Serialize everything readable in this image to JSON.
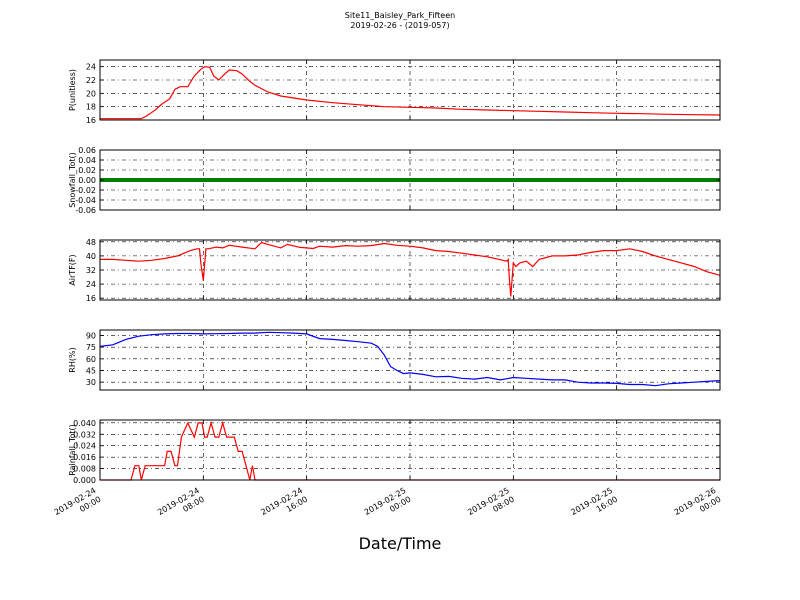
{
  "title": "Site11_Baisley_Park_Fifteen",
  "subtitle": "2019-02-26 - (2019-057)",
  "xlabel": "Date/Time",
  "x_ticks": [
    [
      "2019-02-24",
      "00:00"
    ],
    [
      "2019-02-24",
      "08:00"
    ],
    [
      "2019-02-24",
      "16:00"
    ],
    [
      "2019-02-25",
      "00:00"
    ],
    [
      "2019-02-25",
      "08:00"
    ],
    [
      "2019-02-25",
      "16:00"
    ],
    [
      "2019-02-26",
      "00:00"
    ]
  ],
  "chart_data": [
    {
      "type": "line",
      "ylabel": "P(unitless)",
      "color": "#ff0000",
      "x_range_hours": [
        0,
        48
      ],
      "ylim": [
        16,
        25
      ],
      "yticks": [
        16,
        18,
        20,
        22,
        24
      ],
      "tick_decimals": 0,
      "grid": true,
      "series": [
        {
          "x": [
            0,
            3.2,
            3.6,
            4.2,
            4.8,
            5.4,
            5.8,
            6.2,
            6.8,
            7.3,
            7.8,
            8.1,
            8.5,
            8.8,
            9.2,
            9.6,
            10.0,
            10.6,
            11.0,
            11.6,
            12.0,
            13.0,
            14.0,
            15.0,
            16.0,
            18.0,
            20.0,
            22.0,
            24.0,
            26.0,
            28.0,
            30.0,
            32.0,
            34.0,
            36.0,
            38.0,
            40.0,
            42.0,
            44.0,
            46.0,
            48.0
          ],
          "y": [
            16.2,
            16.2,
            16.6,
            17.4,
            18.4,
            19.2,
            20.6,
            21.0,
            21.0,
            22.6,
            23.6,
            24.0,
            23.9,
            22.6,
            22.0,
            22.8,
            23.5,
            23.4,
            22.9,
            21.8,
            21.2,
            20.2,
            19.6,
            19.3,
            19.0,
            18.6,
            18.3,
            18.0,
            17.9,
            17.8,
            17.6,
            17.5,
            17.4,
            17.3,
            17.2,
            17.1,
            17.0,
            16.95,
            16.85,
            16.8,
            16.75
          ]
        }
      ]
    },
    {
      "type": "line",
      "ylabel": "Snowfall_Tot()",
      "color": "#008000",
      "x_range_hours": [
        0,
        48
      ],
      "ylim": [
        -0.06,
        0.06
      ],
      "yticks": [
        -0.06,
        -0.04,
        -0.02,
        0.0,
        0.02,
        0.04,
        0.06
      ],
      "tick_decimals": 2,
      "grid": true,
      "series": [
        {
          "x": [
            0,
            48
          ],
          "y": [
            0,
            0
          ]
        }
      ]
    },
    {
      "type": "line",
      "ylabel": "AirTF(F)",
      "color": "#ff0000",
      "x_range_hours": [
        0,
        48
      ],
      "ylim": [
        15,
        49
      ],
      "yticks": [
        16,
        24,
        32,
        40,
        48
      ],
      "tick_decimals": 0,
      "grid": true,
      "series": [
        {
          "x": [
            0,
            1.0,
            2.0,
            3.0,
            4.0,
            5.0,
            6.0,
            7.0,
            7.5,
            7.7,
            7.8,
            8.0,
            8.2,
            8.4,
            9.0,
            9.5,
            10.0,
            10.5,
            11.0,
            12.0,
            12.5,
            13.0,
            14.0,
            14.5,
            15.5,
            16.5,
            17.0,
            18.0,
            19.0,
            20.0,
            21.0,
            22.0,
            23.0,
            24.0,
            25.0,
            26.0,
            27.0,
            28.0,
            29.0,
            30.0,
            31.5,
            31.6,
            31.7,
            31.8,
            32.0,
            32.2,
            32.5,
            33.0,
            33.5,
            34.0,
            35.0,
            36.0,
            37.0,
            38.0,
            39.0,
            40.0,
            41.0,
            42.0,
            43.0,
            44.0,
            45.0,
            46.0,
            47.0,
            48.0
          ],
          "y": [
            38,
            38,
            37.5,
            37,
            37.5,
            38.5,
            40,
            43,
            44,
            44,
            36,
            26,
            44,
            44,
            45,
            44.5,
            46,
            45.5,
            45,
            44,
            47.5,
            46.5,
            44.5,
            46.5,
            44.8,
            44.2,
            45.5,
            45,
            45.8,
            45.5,
            45.8,
            47,
            46,
            45.5,
            44.5,
            43,
            42.5,
            41.5,
            40.5,
            39.5,
            37,
            38,
            26,
            17,
            36,
            34,
            36,
            37,
            34,
            38,
            40,
            40,
            40.5,
            42,
            43,
            43,
            44,
            42.5,
            40,
            38,
            36,
            34,
            31,
            29
          ]
        }
      ]
    },
    {
      "type": "line",
      "ylabel": "RH(%)",
      "color": "#0000ff",
      "x_range_hours": [
        0,
        48
      ],
      "ylim": [
        20,
        97
      ],
      "yticks": [
        30,
        45,
        60,
        75,
        90
      ],
      "tick_decimals": 0,
      "grid": true,
      "series": [
        {
          "x": [
            0,
            1.0,
            2.0,
            3.0,
            4.0,
            5.0,
            6.0,
            7.0,
            8.0,
            9.0,
            10.0,
            11.0,
            12.0,
            13.0,
            14.0,
            15.0,
            16.0,
            17.0,
            18.0,
            19.0,
            20.0,
            21.0,
            21.5,
            22.0,
            22.5,
            23.0,
            23.5,
            24.0,
            25.0,
            26.0,
            27.0,
            28.0,
            29.0,
            30.0,
            31.0,
            32.0,
            33.0,
            34.0,
            35.0,
            36.0,
            37.0,
            38.0,
            39.0,
            40.0,
            41.0,
            42.0,
            43.0,
            44.0,
            45.0,
            46.0,
            47.0,
            48.0
          ],
          "y": [
            76,
            78,
            85,
            89,
            91,
            92,
            92.5,
            92.5,
            92,
            92.3,
            92.5,
            93,
            93,
            94,
            93.5,
            93,
            92,
            86,
            85,
            83.5,
            82,
            80,
            76,
            65,
            50,
            45,
            41,
            42,
            40,
            37,
            37.5,
            35,
            34,
            36,
            33,
            36,
            35,
            34,
            33,
            33,
            30,
            29,
            29,
            28.5,
            27,
            27,
            25.5,
            28,
            29,
            30,
            31,
            32
          ]
        }
      ]
    },
    {
      "type": "line",
      "ylabel": "Rainfall_Tot()",
      "color": "#ff0000",
      "x_range_hours": [
        0,
        48
      ],
      "ylim": [
        0,
        0.042
      ],
      "yticks": [
        0.0,
        0.008,
        0.016,
        0.024,
        0.032,
        0.04
      ],
      "tick_decimals": 3,
      "grid": true,
      "series": [
        {
          "x": [
            0,
            2.4,
            2.7,
            3.0,
            3.2,
            3.5,
            5.0,
            5.2,
            5.5,
            5.8,
            6.0,
            6.3,
            6.8,
            7.3,
            7.6,
            7.9,
            8.1,
            8.3,
            8.6,
            8.9,
            9.2,
            9.5,
            9.8,
            10.1,
            10.4,
            10.7,
            11.0,
            11.3,
            11.6,
            11.8,
            12.0,
            12.3,
            12.6,
            48
          ],
          "y": [
            0,
            0,
            0.01,
            0.01,
            0,
            0.01,
            0.01,
            0.02,
            0.02,
            0.01,
            0.01,
            0.03,
            0.04,
            0.03,
            0.04,
            0.04,
            0.03,
            0.03,
            0.04,
            0.03,
            0.03,
            0.04,
            0.03,
            0.03,
            0.03,
            0.02,
            0.02,
            0.01,
            0.0,
            0.01,
            0.0,
            0.0,
            0.0,
            0.0
          ]
        }
      ]
    }
  ]
}
